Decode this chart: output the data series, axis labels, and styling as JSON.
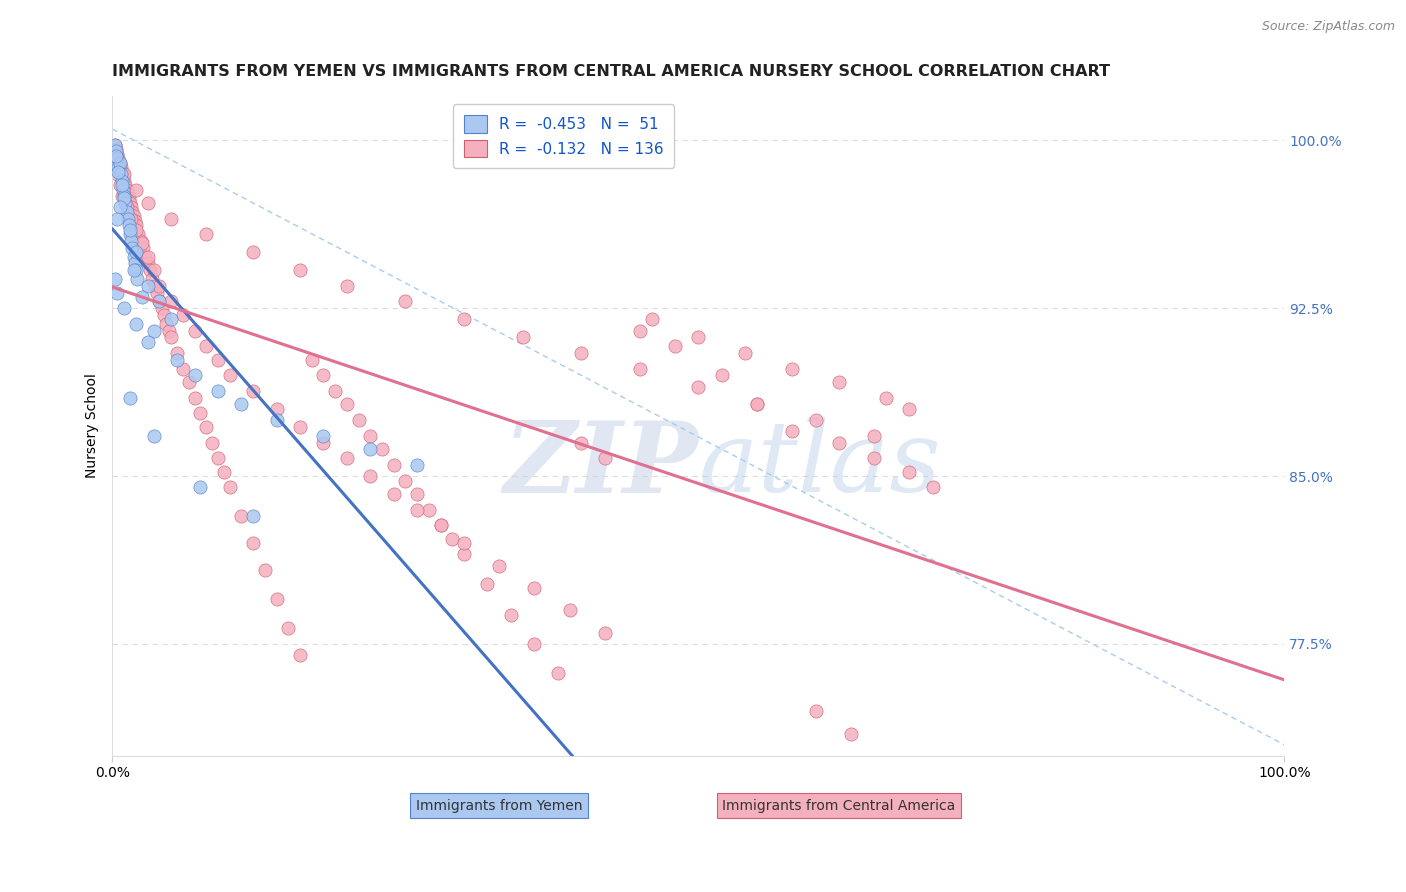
{
  "title": "IMMIGRANTS FROM YEMEN VS IMMIGRANTS FROM CENTRAL AMERICA NURSERY SCHOOL CORRELATION CHART",
  "source_text": "Source: ZipAtlas.com",
  "ylabel": "Nursery School",
  "legend_blue_label": "Immigrants from Yemen",
  "legend_pink_label": "Immigrants from Central America",
  "legend_blue_r": "-0.453",
  "legend_pink_r": "-0.132",
  "legend_blue_n": "51",
  "legend_pink_n": "136",
  "watermark_zip": "ZIP",
  "watermark_atlas": "atlas",
  "blue_color": "#aac8f0",
  "pink_color": "#f5b0c0",
  "blue_edge_color": "#5580cc",
  "pink_edge_color": "#d06070",
  "blue_line_color": "#4472c4",
  "pink_line_color": "#e07090",
  "ref_line_color": "#aaccee",
  "grid_color": "#dddddd",
  "right_tick_color": "#4472c4",
  "ylabel_right_ticks": [
    77.5,
    85.0,
    92.5,
    100.0
  ],
  "ylabel_right_labels": [
    "77.5%",
    "85.0%",
    "92.5%",
    "100.0%"
  ],
  "xmin": 0.0,
  "xmax": 100.0,
  "ymin": 72.5,
  "ymax": 102.0,
  "blue_x": [
    0.2,
    0.3,
    0.4,
    0.5,
    0.6,
    0.7,
    0.8,
    0.9,
    1.0,
    1.1,
    1.2,
    1.3,
    1.4,
    1.5,
    1.6,
    1.7,
    1.8,
    1.9,
    2.0,
    2.1,
    0.3,
    0.5,
    0.8,
    1.0,
    0.6,
    1.5,
    0.4,
    2.0,
    1.8,
    3.0,
    4.0,
    2.5,
    5.0,
    3.5,
    0.2,
    0.4,
    1.0,
    2.0,
    3.0,
    5.5,
    7.0,
    9.0,
    11.0,
    14.0,
    18.0,
    22.0,
    26.0,
    1.5,
    3.5,
    7.5,
    12.0
  ],
  "blue_y": [
    99.8,
    99.5,
    99.2,
    98.8,
    99.0,
    98.5,
    98.2,
    97.8,
    97.5,
    97.2,
    96.8,
    96.5,
    96.2,
    95.8,
    95.5,
    95.2,
    94.8,
    94.5,
    94.2,
    93.8,
    99.3,
    98.6,
    98.0,
    97.4,
    97.0,
    96.0,
    96.5,
    95.0,
    94.2,
    93.5,
    92.8,
    93.0,
    92.0,
    91.5,
    93.8,
    93.2,
    92.5,
    91.8,
    91.0,
    90.2,
    89.5,
    88.8,
    88.2,
    87.5,
    86.8,
    86.2,
    85.5,
    88.5,
    86.8,
    84.5,
    83.2
  ],
  "pink_x": [
    0.2,
    0.3,
    0.4,
    0.5,
    0.6,
    0.7,
    0.8,
    0.9,
    1.0,
    1.1,
    1.2,
    1.3,
    1.4,
    1.5,
    1.6,
    1.7,
    1.8,
    1.9,
    2.0,
    2.2,
    2.4,
    2.6,
    2.8,
    3.0,
    3.2,
    3.4,
    3.6,
    3.8,
    4.0,
    4.2,
    4.4,
    4.6,
    4.8,
    5.0,
    5.5,
    6.0,
    6.5,
    7.0,
    7.5,
    8.0,
    8.5,
    9.0,
    9.5,
    10.0,
    11.0,
    12.0,
    13.0,
    14.0,
    15.0,
    16.0,
    17.0,
    18.0,
    19.0,
    20.0,
    21.0,
    22.0,
    23.0,
    24.0,
    25.0,
    26.0,
    27.0,
    28.0,
    29.0,
    30.0,
    32.0,
    34.0,
    36.0,
    38.0,
    40.0,
    42.0,
    45.0,
    48.0,
    52.0,
    55.0,
    58.0,
    62.0,
    65.0,
    68.0,
    70.0,
    0.4,
    0.6,
    0.8,
    1.2,
    1.6,
    2.0,
    2.5,
    3.0,
    3.5,
    4.0,
    5.0,
    6.0,
    7.0,
    8.0,
    9.0,
    10.0,
    12.0,
    14.0,
    16.0,
    18.0,
    20.0,
    22.0,
    24.0,
    26.0,
    28.0,
    30.0,
    33.0,
    36.0,
    39.0,
    42.0,
    46.0,
    50.0,
    54.0,
    58.0,
    62.0,
    66.0,
    68.0,
    60.0,
    63.0,
    0.5,
    1.0,
    2.0,
    3.0,
    5.0,
    8.0,
    12.0,
    16.0,
    20.0,
    25.0,
    30.0,
    35.0,
    40.0,
    45.0,
    50.0,
    55.0,
    60.0,
    65.0
  ],
  "pink_y": [
    99.8,
    99.6,
    99.4,
    99.2,
    99.0,
    98.8,
    98.6,
    98.4,
    98.2,
    98.0,
    97.8,
    97.6,
    97.4,
    97.2,
    97.0,
    96.8,
    96.6,
    96.4,
    96.2,
    95.8,
    95.5,
    95.2,
    94.8,
    94.5,
    94.2,
    93.8,
    93.5,
    93.2,
    92.8,
    92.5,
    92.2,
    91.8,
    91.5,
    91.2,
    90.5,
    89.8,
    89.2,
    88.5,
    87.8,
    87.2,
    86.5,
    85.8,
    85.2,
    84.5,
    83.2,
    82.0,
    80.8,
    79.5,
    78.2,
    77.0,
    90.2,
    89.5,
    88.8,
    88.2,
    87.5,
    86.8,
    86.2,
    85.5,
    84.8,
    84.2,
    83.5,
    82.8,
    82.2,
    81.5,
    80.2,
    78.8,
    77.5,
    76.2,
    86.5,
    85.8,
    91.5,
    90.8,
    89.5,
    88.2,
    87.0,
    86.5,
    85.8,
    85.2,
    84.5,
    98.5,
    98.0,
    97.5,
    97.0,
    96.5,
    96.0,
    95.4,
    94.8,
    94.2,
    93.5,
    92.8,
    92.2,
    91.5,
    90.8,
    90.2,
    89.5,
    88.8,
    88.0,
    87.2,
    86.5,
    85.8,
    85.0,
    84.2,
    83.5,
    82.8,
    82.0,
    81.0,
    80.0,
    79.0,
    78.0,
    92.0,
    91.2,
    90.5,
    89.8,
    89.2,
    88.5,
    88.0,
    74.5,
    73.5,
    99.0,
    98.5,
    97.8,
    97.2,
    96.5,
    95.8,
    95.0,
    94.2,
    93.5,
    92.8,
    92.0,
    91.2,
    90.5,
    89.8,
    89.0,
    88.2,
    87.5,
    86.8
  ]
}
